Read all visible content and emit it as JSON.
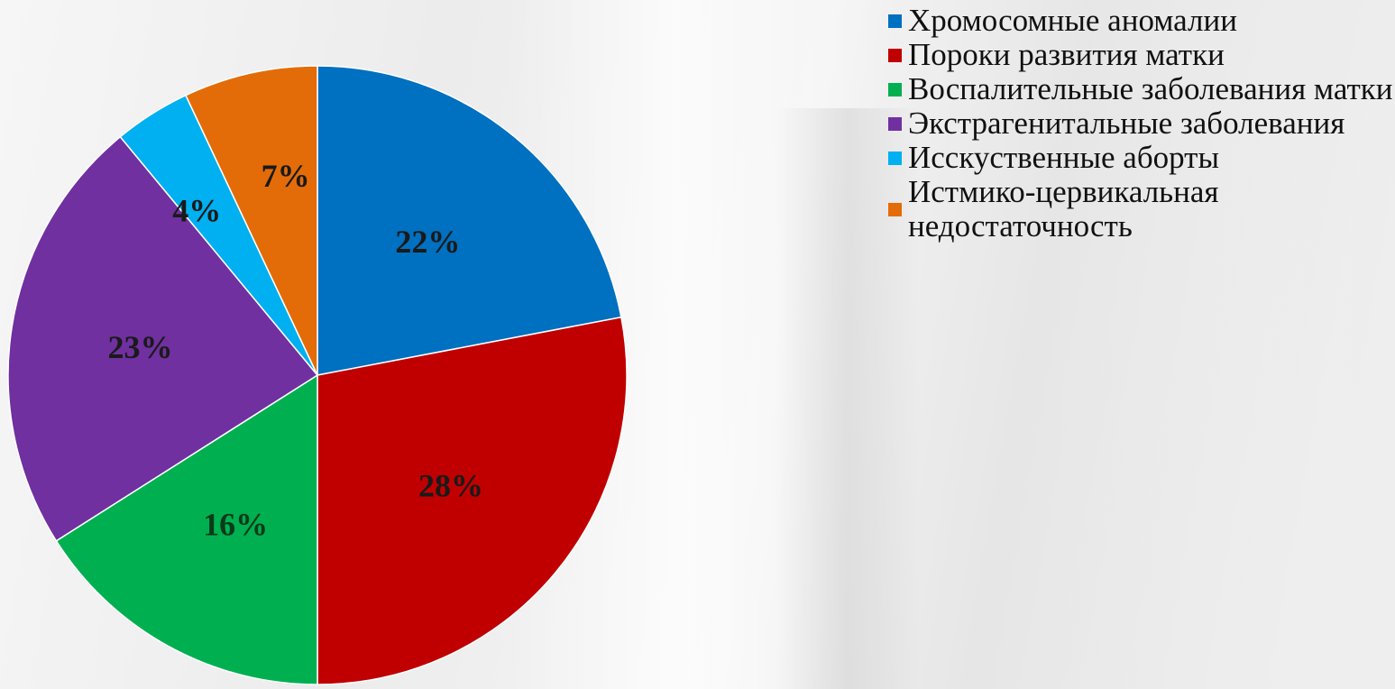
{
  "chart_data": {
    "type": "pie",
    "title": "",
    "slices": [
      {
        "label": "Хромосомные аномалии",
        "value": 22,
        "data_label": "22%",
        "color": "#0070c0",
        "label_color": "#1a1a1a"
      },
      {
        "label": "Пороки развития матки",
        "value": 28,
        "data_label": "28%",
        "color": "#c00000",
        "label_color": "#1a1a1a"
      },
      {
        "label": "Воспалительные заболевания матки",
        "value": 16,
        "data_label": "16%",
        "color": "#00b050",
        "label_color": "#0a3a1a"
      },
      {
        "label": "Экстрагенитальные заболевания",
        "value": 23,
        "data_label": "23%",
        "color": "#7030a0",
        "label_color": "#1a1a1a"
      },
      {
        "label": "Исскуственные аборты",
        "value": 4,
        "data_label": "4%",
        "color": "#00b0f0",
        "label_color": "#1a1a1a"
      },
      {
        "label": "Истмико-цервикальная недостаточность",
        "value": 7,
        "data_label": "7%",
        "color": "#e36c09",
        "label_color": "#1a1a1a"
      }
    ],
    "legend_position": "right",
    "start": "12 o'clock, clockwise"
  }
}
